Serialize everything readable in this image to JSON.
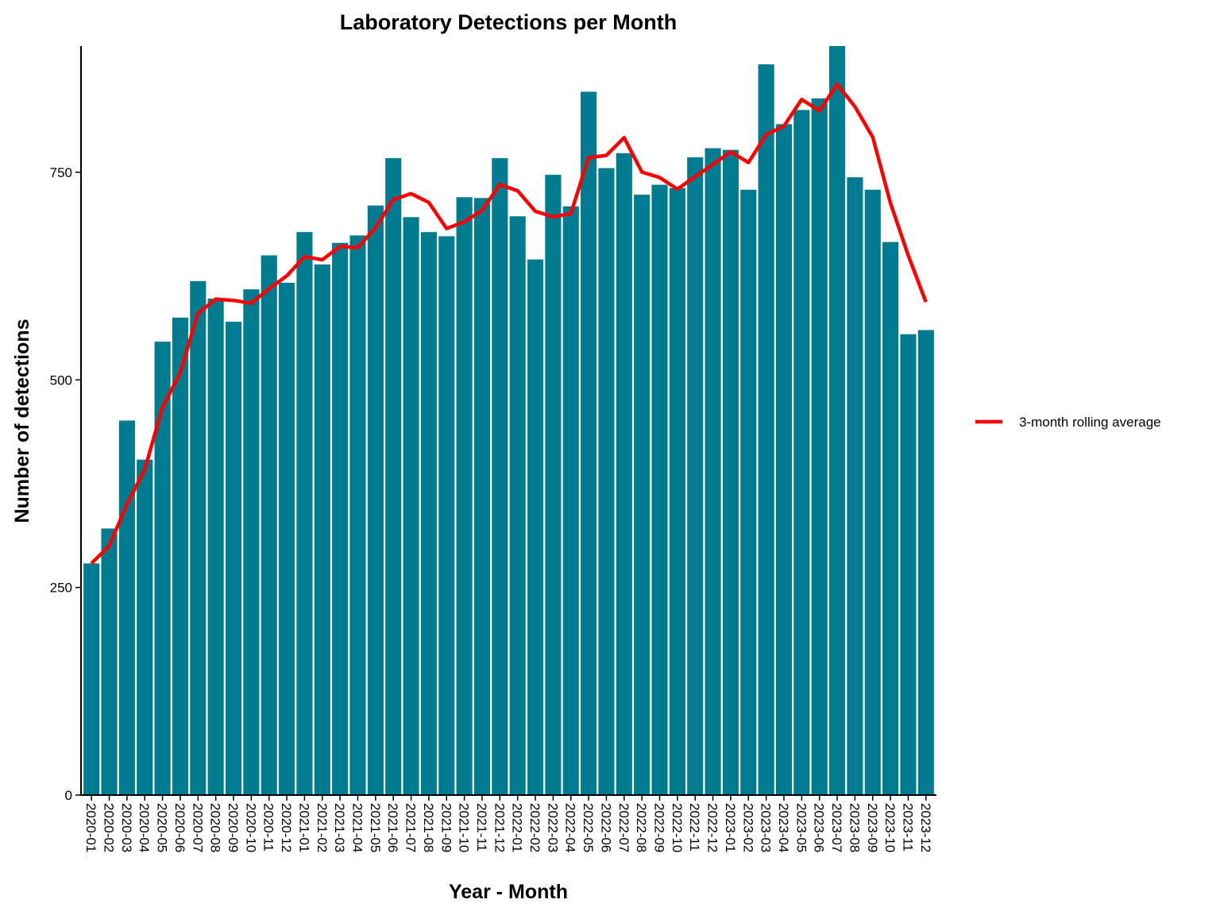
{
  "chart_data": {
    "type": "bar",
    "title": "Laboratory Detections per Month",
    "xlabel": "Year - Month",
    "ylabel": "Number of detections",
    "ylim": [
      0,
      902
    ],
    "yticks": [
      0,
      250,
      500,
      750
    ],
    "grid": false,
    "legend_position": "right",
    "colors": {
      "bar": "#007B8F",
      "line": "#FF0000"
    },
    "categories": [
      "2020-01",
      "2020-02",
      "2020-03",
      "2020-04",
      "2020-05",
      "2020-06",
      "2020-07",
      "2020-08",
      "2020-09",
      "2020-10",
      "2020-11",
      "2020-12",
      "2021-01",
      "2021-02",
      "2021-03",
      "2021-04",
      "2021-05",
      "2021-06",
      "2021-07",
      "2021-08",
      "2021-09",
      "2021-10",
      "2021-11",
      "2021-12",
      "2022-01",
      "2022-02",
      "2022-03",
      "2022-04",
      "2022-05",
      "2022-06",
      "2022-07",
      "2022-08",
      "2022-09",
      "2022-10",
      "2022-11",
      "2022-12",
      "2023-01",
      "2023-02",
      "2023-03",
      "2023-04",
      "2023-05",
      "2023-06",
      "2023-07",
      "2023-08",
      "2023-09",
      "2023-10",
      "2023-11",
      "2023-12"
    ],
    "values": [
      279,
      321,
      451,
      404,
      546,
      575,
      619,
      598,
      570,
      609,
      650,
      617,
      678,
      639,
      665,
      674,
      710,
      767,
      696,
      678,
      673,
      720,
      719,
      767,
      697,
      645,
      747,
      709,
      847,
      755,
      773,
      723,
      735,
      731,
      768,
      779,
      777,
      729,
      880,
      808,
      825,
      839,
      904,
      744,
      729,
      666,
      555,
      560
    ],
    "series": [
      {
        "name": "3-month rolling average",
        "type": "line",
        "values": [
          279,
          300,
          350.3,
          392,
          467,
          508.3,
          580,
          597.3,
          595.7,
          592.3,
          609.7,
          625.3,
          648.3,
          644.7,
          660.7,
          659.3,
          683,
          717,
          724.3,
          713.7,
          682.3,
          690.3,
          704,
          735.3,
          727.7,
          703,
          696.3,
          700.3,
          767.7,
          770.3,
          791.7,
          750.3,
          743.7,
          729.7,
          744.7,
          759.3,
          774.7,
          761.7,
          795.3,
          805.7,
          837.7,
          824,
          856,
          829,
          792.3,
          713,
          650,
          593.7
        ]
      }
    ]
  }
}
